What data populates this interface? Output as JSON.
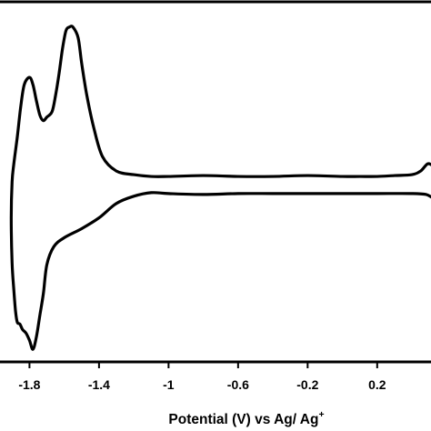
{
  "chart_data": {
    "type": "line",
    "title": "",
    "xlabel": "Potential (V) vs Ag/ Ag+",
    "xlabel_main": "Potential (V) vs Ag/ Ag",
    "xlabel_sup": "+",
    "ylabel": "",
    "xlim": [
      -1.98,
      0.52
    ],
    "ylim": [
      -1.0,
      1.0
    ],
    "x_ticks": [
      -1.8,
      -1.4,
      -1.0,
      -0.6,
      -0.2,
      0.2
    ],
    "x_tick_labels": [
      "-1.8",
      "-1.4",
      "-1",
      "-0.6",
      "-0.2",
      "0.2"
    ],
    "grid": false,
    "legend": "none",
    "series": [
      {
        "color": "#000000",
        "x": [
          0.52,
          0.49,
          0.45,
          0.4,
          0.3,
          0.2,
          0.1,
          0.0,
          -0.2,
          -0.4,
          -0.6,
          -0.8,
          -1.0,
          -1.1,
          -1.2,
          -1.3,
          -1.38,
          -1.43,
          -1.47,
          -1.5,
          -1.52,
          -1.55,
          -1.57,
          -1.59,
          -1.61,
          -1.63,
          -1.65,
          -1.67,
          -1.7,
          -1.72,
          -1.74,
          -1.76,
          -1.78,
          -1.8,
          -1.83,
          -1.85,
          -1.87,
          -1.89,
          -1.9,
          -1.905,
          -1.9,
          -1.89,
          -1.88,
          -1.87,
          -1.855,
          -1.84,
          -1.82,
          -1.8,
          -1.78,
          -1.76,
          -1.74,
          -1.72,
          -1.7,
          -1.66,
          -1.6,
          -1.5,
          -1.4,
          -1.3,
          -1.2,
          -1.1,
          -1.0,
          -0.8,
          -0.6,
          -0.4,
          -0.2,
          0.0,
          0.2,
          0.4,
          0.48,
          0.52
        ],
        "y": [
          0.09,
          0.1,
          0.06,
          0.04,
          0.035,
          0.03,
          0.03,
          0.03,
          0.035,
          0.03,
          0.03,
          0.035,
          0.03,
          0.03,
          0.04,
          0.06,
          0.14,
          0.3,
          0.48,
          0.66,
          0.8,
          0.86,
          0.86,
          0.84,
          0.74,
          0.6,
          0.48,
          0.39,
          0.36,
          0.34,
          0.37,
          0.45,
          0.54,
          0.58,
          0.54,
          0.42,
          0.25,
          0.1,
          0.0,
          -0.2,
          -0.45,
          -0.6,
          -0.72,
          -0.78,
          -0.79,
          -0.82,
          -0.84,
          -0.88,
          -0.93,
          -0.86,
          -0.74,
          -0.62,
          -0.46,
          -0.36,
          -0.31,
          -0.26,
          -0.2,
          -0.12,
          -0.08,
          -0.06,
          -0.065,
          -0.07,
          -0.065,
          -0.065,
          -0.065,
          -0.065,
          -0.065,
          -0.065,
          -0.07,
          -0.09
        ]
      }
    ]
  }
}
